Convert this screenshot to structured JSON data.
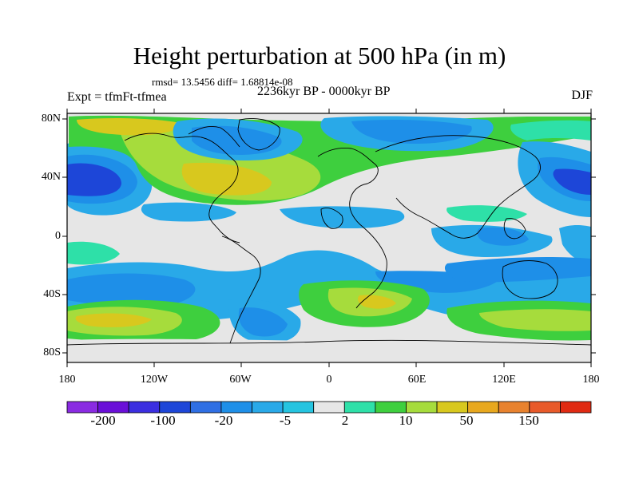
{
  "title": "Height perturbation at 500 hPa (in m)",
  "stats": "rmsd= 13.5456 diff= 1.68814e-08",
  "experiment": "Expt = tfmFt-tfmea",
  "period": "2236kyr BP - 0000kyr BP",
  "season": "DJF",
  "lat_ticks": [
    "80N",
    "40N",
    "0",
    "40S",
    "80S"
  ],
  "lon_ticks": [
    "180",
    "120W",
    "60W",
    "0",
    "60E",
    "120E",
    "180"
  ],
  "colorbar": {
    "colors": [
      "#8a2be2",
      "#6a0fd8",
      "#3b2ee0",
      "#1d46d8",
      "#2f6fe4",
      "#1e8fe8",
      "#29a9e8",
      "#25c4e0",
      "#e6e6e6",
      "#2ee0a8",
      "#3ecf3e",
      "#a6dc3c",
      "#d8c81e",
      "#e8a81e",
      "#e8822e",
      "#e85a2a",
      "#e02a12"
    ],
    "labels": [
      "-200",
      "-100",
      "-20",
      "-5",
      "2",
      "10",
      "50",
      "150"
    ]
  },
  "palette": {
    "neutral": "#e6e6e6",
    "lightblue": "#29a9e8",
    "blue": "#1e8fe8",
    "darkblue": "#1d46d8",
    "cyan": "#25c4e0",
    "teal": "#2ee0a8",
    "green": "#3ecf3e",
    "yellowgreen": "#a6dc3c",
    "yellow": "#d8c81e",
    "orange": "#e8a81e"
  }
}
